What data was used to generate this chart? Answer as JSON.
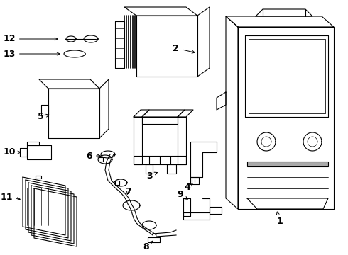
{
  "bg_color": "#ffffff",
  "line_color": "#000000",
  "lw": 0.8,
  "fig_width": 4.9,
  "fig_height": 3.6,
  "dpi": 100
}
